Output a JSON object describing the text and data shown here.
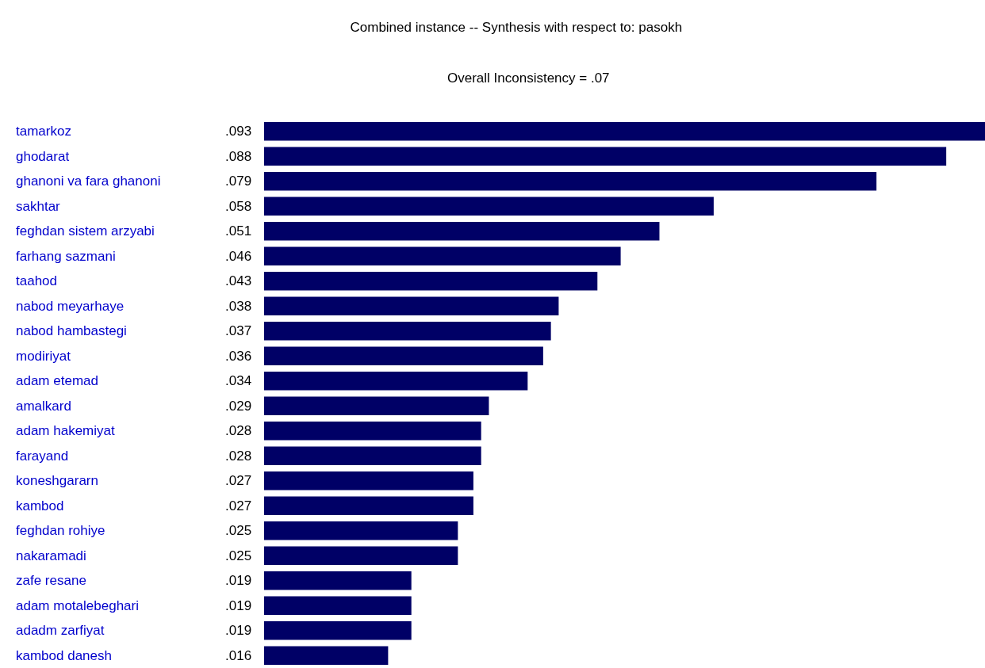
{
  "chart_data": {
    "type": "bar",
    "orientation": "horizontal",
    "title": "Combined instance -- Synthesis with respect to: pasokh",
    "subtitle": "Overall Inconsistency = .07",
    "categories": [
      "tamarkoz",
      "ghodarat",
      "ghanoni va fara ghanoni",
      "sakhtar",
      "feghdan sistem arzyabi",
      "farhang sazmani",
      "taahod",
      "nabod meyarhaye",
      "nabod hambastegi",
      "modiriyat",
      "adam etemad",
      "amalkard",
      "adam hakemiyat",
      "farayand",
      "koneshgararn",
      "kambod",
      "feghdan rohiye",
      "nakaramadi",
      "zafe resane",
      "adam motalebeghari",
      "adadm zarfiyat",
      "kambod danesh"
    ],
    "values": [
      0.093,
      0.088,
      0.079,
      0.058,
      0.051,
      0.046,
      0.043,
      0.038,
      0.037,
      0.036,
      0.034,
      0.029,
      0.028,
      0.028,
      0.027,
      0.027,
      0.025,
      0.025,
      0.019,
      0.019,
      0.019,
      0.016
    ],
    "value_labels": [
      ".093",
      ".088",
      ".079",
      ".058",
      ".051",
      ".046",
      ".043",
      ".038",
      ".037",
      ".036",
      ".034",
      ".029",
      ".028",
      ".028",
      ".027",
      ".027",
      ".025",
      ".025",
      ".019",
      ".019",
      ".019",
      ".016"
    ],
    "color": "#000066"
  }
}
